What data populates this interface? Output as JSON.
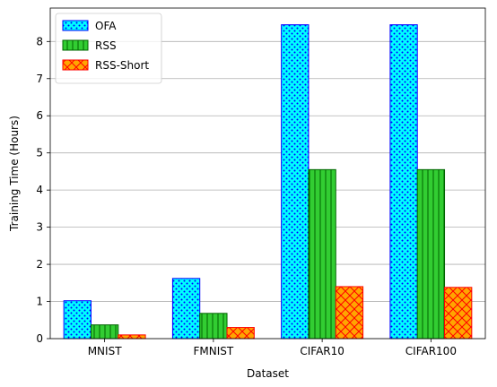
{
  "chart_data": {
    "type": "bar",
    "title": "",
    "xlabel": "Dataset",
    "ylabel": "Training Time (Hours)",
    "categories": [
      "MNIST",
      "FMNIST",
      "CIFAR10",
      "CIFAR100"
    ],
    "ylim": [
      0,
      8.9
    ],
    "yticks": [
      0,
      1,
      2,
      3,
      4,
      5,
      6,
      7,
      8
    ],
    "grid": "horizontal",
    "legend_position": "top-left",
    "series": [
      {
        "name": "OFA",
        "values": [
          1.02,
          1.62,
          8.45,
          8.45
        ],
        "fill": "#00ffff",
        "edge": "#0000ff",
        "hatch": "dots"
      },
      {
        "name": "RSS",
        "values": [
          0.37,
          0.68,
          4.55,
          4.55
        ],
        "fill": "#32cd32",
        "edge": "#006400",
        "hatch": "vertical"
      },
      {
        "name": "RSS-Short",
        "values": [
          0.1,
          0.3,
          1.4,
          1.38
        ],
        "fill": "#ffa500",
        "edge": "#ff0000",
        "hatch": "crosshatch"
      }
    ]
  }
}
